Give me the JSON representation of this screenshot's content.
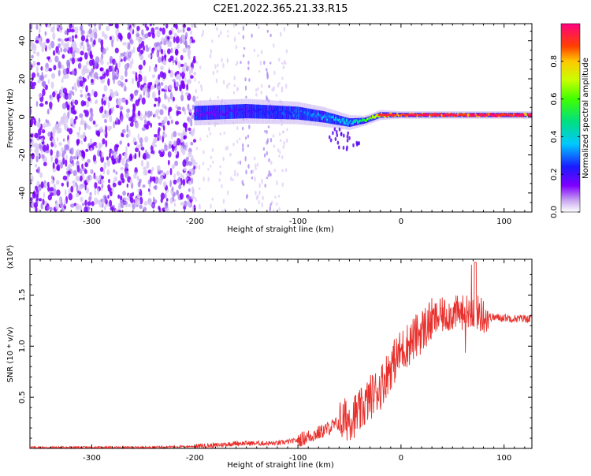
{
  "title": "C2E1.2022.365.21.33.R15",
  "chart_data": [
    {
      "type": "heatmap",
      "xlabel": "Height of straight line (km)",
      "ylabel": "Frequency (Hz)",
      "xlim": [
        -360,
        127
      ],
      "ylim": [
        -50,
        49
      ],
      "xticks": [
        -300,
        -200,
        -100,
        0,
        100
      ],
      "yticks": [
        -40,
        -20,
        0,
        20,
        40
      ],
      "colorbar": {
        "label": "Normalized spectral amplitude",
        "ticks": [
          0.0,
          0.2,
          0.4,
          0.6,
          0.8
        ],
        "range": [
          0,
          1
        ],
        "colormap": "rainbow"
      },
      "noise_region_x": [
        -360,
        -200
      ],
      "signal_band": {
        "x": [
          -200,
          -150,
          -100,
          -75,
          -50,
          -35,
          -20,
          0,
          50,
          100,
          127
        ],
        "center_hz": [
          2,
          3,
          2,
          0,
          -3,
          -2,
          1,
          1,
          1,
          1,
          1
        ],
        "half_width_hz": [
          5,
          5,
          4.5,
          4,
          3,
          2,
          2,
          1.5,
          1.5,
          1.5,
          1.5
        ],
        "peak_amplitude": [
          0.15,
          0.2,
          0.3,
          0.35,
          0.4,
          0.6,
          0.8,
          0.85,
          0.9,
          0.9,
          0.9
        ]
      },
      "grid": false
    },
    {
      "type": "line",
      "xlabel": "Height of straight line (km)",
      "ylabel": "SNR (10 * v/v)",
      "y_multiplier": "(x10⁴)",
      "xlim": [
        -360,
        127
      ],
      "ylim": [
        0,
        1.85
      ],
      "xticks": [
        -300,
        -200,
        -100,
        0,
        100
      ],
      "yticks": [
        0.5,
        1.0,
        1.5
      ],
      "ytick_labels": [
        "0.5",
        "1.0",
        "1.5"
      ],
      "color": "#e8302c",
      "x": [
        -360,
        -300,
        -250,
        -200,
        -180,
        -160,
        -140,
        -120,
        -100,
        -80,
        -60,
        -50,
        -40,
        -30,
        -20,
        -10,
        0,
        10,
        20,
        30,
        40,
        50,
        60,
        70,
        80,
        90,
        100,
        110,
        127
      ],
      "y": [
        0.01,
        0.01,
        0.01,
        0.02,
        0.03,
        0.05,
        0.05,
        0.05,
        0.08,
        0.15,
        0.25,
        0.3,
        0.35,
        0.5,
        0.6,
        0.8,
        0.95,
        1.05,
        1.15,
        1.25,
        1.3,
        1.32,
        1.33,
        1.35,
        1.3,
        1.28,
        1.28,
        1.27,
        1.27
      ],
      "grid": false
    }
  ]
}
